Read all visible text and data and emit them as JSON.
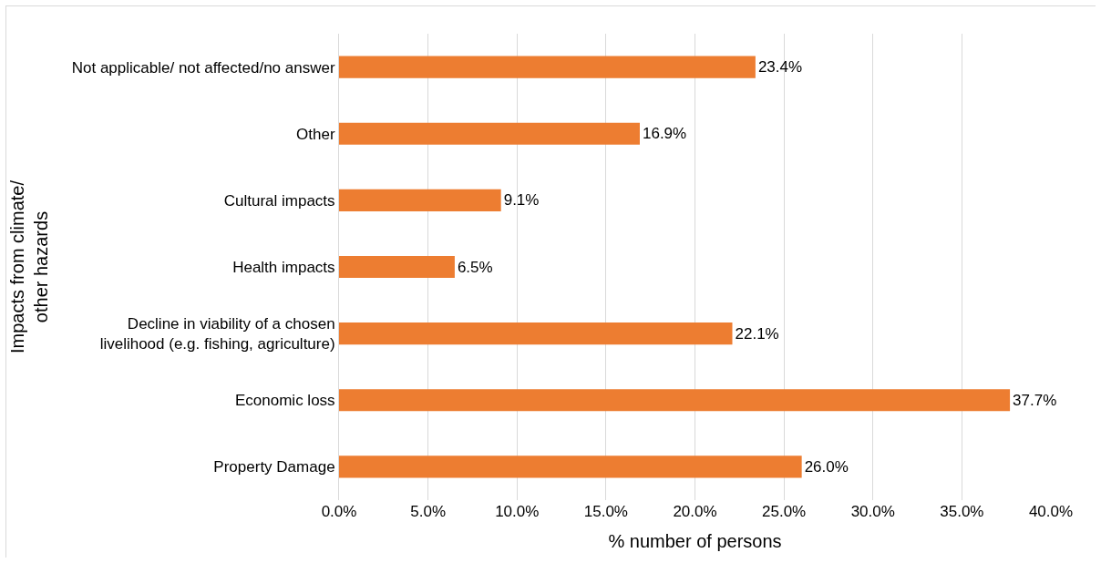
{
  "chart_data": {
    "type": "bar",
    "orientation": "horizontal",
    "xlabel": "% number of persons",
    "ylabel": "Impacts from climate/\nother hazards",
    "categories": [
      "Not applicable/ not affected/no answer",
      "Other",
      "Cultural impacts",
      "Health impacts",
      "Decline in viability of a chosen\nlivelihood (e.g. fishing, agriculture)",
      "Economic loss",
      "Property Damage"
    ],
    "values": [
      23.4,
      16.9,
      9.1,
      6.5,
      22.1,
      37.7,
      26.0
    ],
    "value_labels": [
      "23.4%",
      "16.9%",
      "9.1%",
      "6.5%",
      "22.1%",
      "37.7%",
      "26.0%"
    ],
    "color": "#ed7d31",
    "xlim": [
      0,
      40
    ],
    "xticks": [
      {
        "value": 0,
        "label": "0.0%"
      },
      {
        "value": 5,
        "label": "5.0%"
      },
      {
        "value": 10,
        "label": "10.0%"
      },
      {
        "value": 15,
        "label": "15.0%"
      },
      {
        "value": 20,
        "label": "20.0%"
      },
      {
        "value": 25,
        "label": "25.0%"
      },
      {
        "value": 30,
        "label": "30.0%"
      },
      {
        "value": 35,
        "label": "35.0%"
      },
      {
        "value": 40,
        "label": "40.0%"
      }
    ],
    "grid": "x"
  }
}
